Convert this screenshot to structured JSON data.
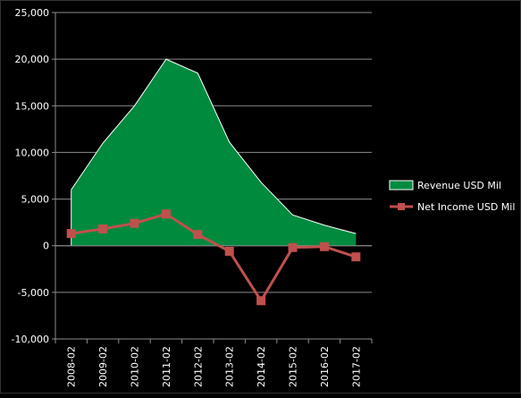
{
  "chart_data": {
    "type": "area",
    "categories": [
      "2008-02",
      "2009-02",
      "2010-02",
      "2011-02",
      "2012-02",
      "2013-02",
      "2014-02",
      "2015-02",
      "2016-02",
      "2017-02"
    ],
    "series": [
      {
        "name": "Revenue USD Mil",
        "kind": "area",
        "color": "#008a3e",
        "stroke": "#ffffff",
        "values": [
          6000,
          11000,
          15000,
          20000,
          18500,
          11100,
          6800,
          3300,
          2200,
          1300
        ]
      },
      {
        "name": "Net Income USD Mil",
        "kind": "line",
        "color": "#c0504d",
        "values": [
          1300,
          1800,
          2400,
          3400,
          1200,
          -600,
          -5900,
          -200,
          -100,
          -1200
        ]
      }
    ],
    "ylim": [
      -10000,
      25000
    ],
    "yticks": [
      -10000,
      -5000,
      0,
      5000,
      10000,
      15000,
      20000,
      25000
    ],
    "ytick_labels": [
      "-10,000",
      "-5,000",
      "0",
      "5,000",
      "10,000",
      "15,000",
      "20,000",
      "25,000"
    ],
    "grid": true,
    "legend_position": "right",
    "colors": {
      "background": "#000000",
      "grid": "#8c8c8c",
      "text": "#ffffff"
    }
  }
}
